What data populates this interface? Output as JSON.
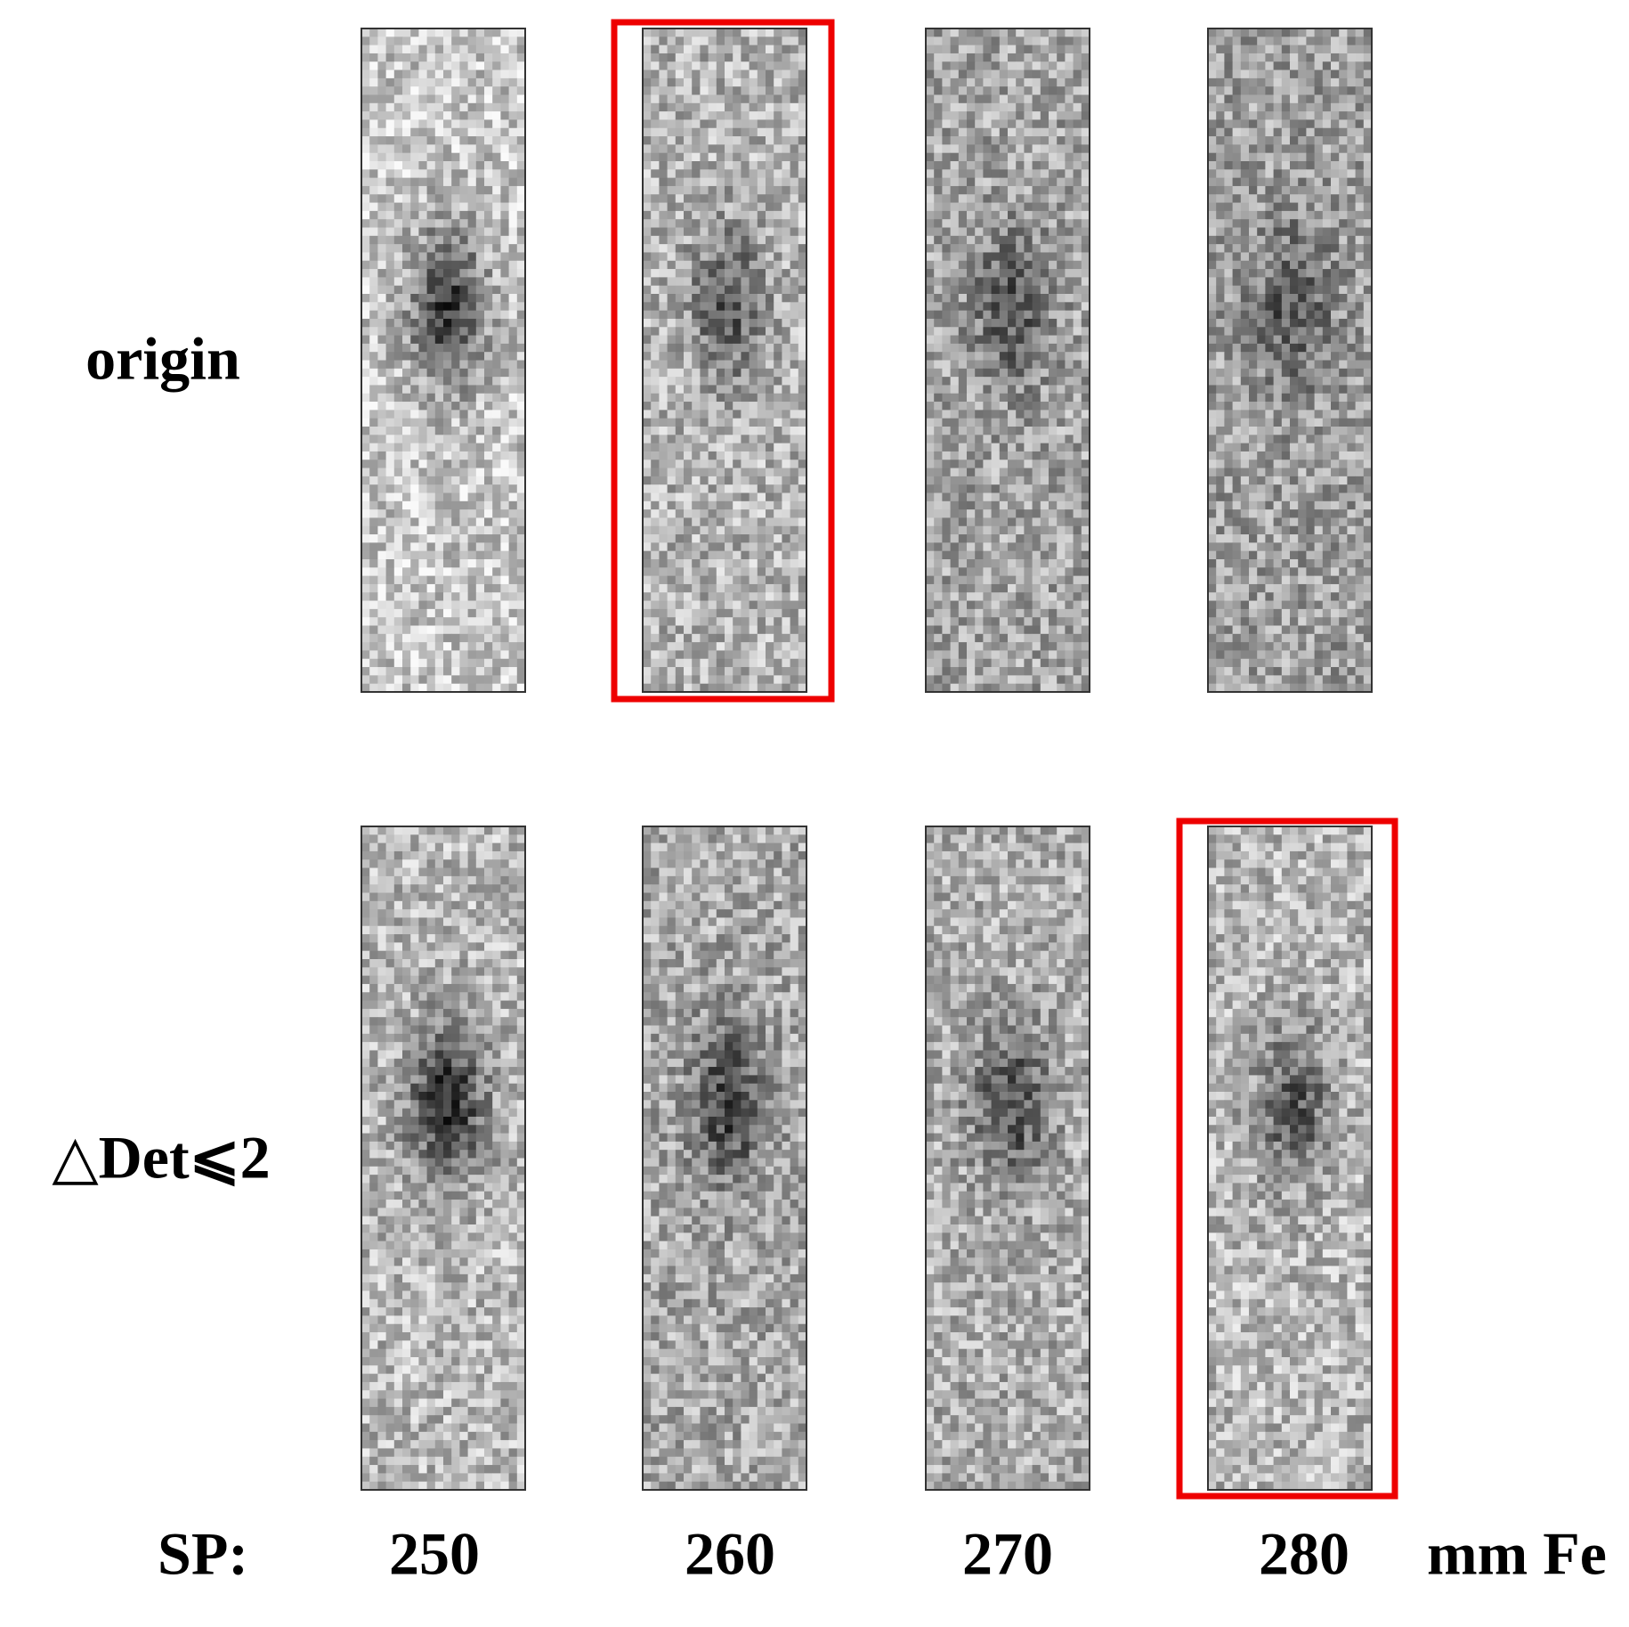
{
  "rows": [
    {
      "label": "origin"
    },
    {
      "label": "△Det⩽2"
    }
  ],
  "columns": {
    "prefix": "SP:",
    "labels": [
      "250",
      "260",
      "270",
      "280"
    ],
    "unit": "mm Fe"
  }
}
